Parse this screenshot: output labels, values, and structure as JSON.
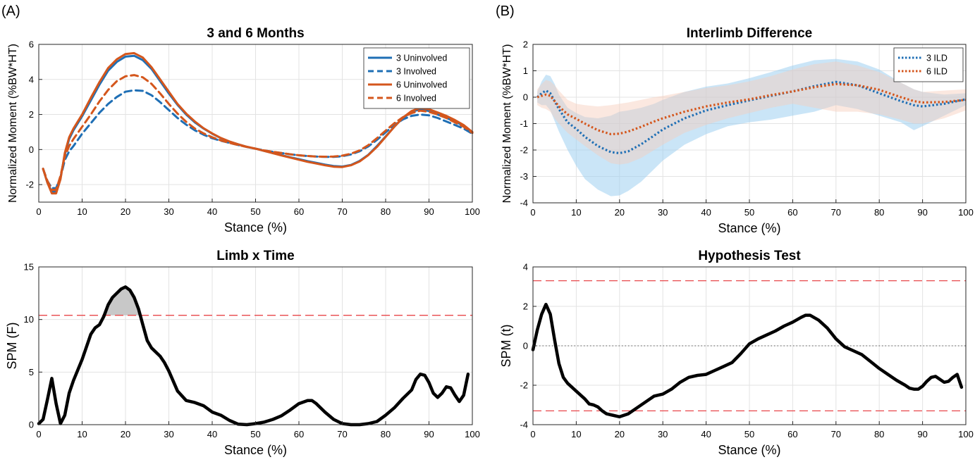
{
  "panel_labels": [
    "(A)",
    "(B)"
  ],
  "colors": {
    "blue": "#1f6fb5",
    "orange": "#d4561c",
    "black": "#000000",
    "threshold": "#e8474a",
    "shade_blue": "#9fd0f0",
    "shade_orange": "#f6cdbb",
    "grid": "#e3e3e3",
    "cluster_fill": "#c8c8c8"
  },
  "chart_data": [
    {
      "id": "A_top",
      "type": "line",
      "title": "3 and 6 Months",
      "xlabel": "Stance (%)",
      "ylabel": "Normalized Moment (%BW*HT)",
      "xlim": [
        0,
        100
      ],
      "ylim": [
        -3,
        6
      ],
      "xticks": [
        0,
        10,
        20,
        30,
        40,
        50,
        60,
        70,
        80,
        90,
        100
      ],
      "yticks": [
        -2,
        0,
        2,
        4,
        6
      ],
      "grid": true,
      "legend_position": "top-right",
      "x": [
        1,
        2,
        3,
        4,
        5,
        6,
        7,
        8,
        10,
        12,
        14,
        16,
        18,
        20,
        22,
        24,
        26,
        28,
        30,
        32,
        34,
        36,
        38,
        40,
        42,
        44,
        46,
        48,
        50,
        52,
        54,
        56,
        58,
        60,
        62,
        64,
        66,
        68,
        70,
        72,
        74,
        76,
        78,
        80,
        82,
        84,
        86,
        88,
        90,
        92,
        94,
        96,
        98,
        100
      ],
      "series": [
        {
          "name": "3 Uninvolved",
          "color": "blue",
          "dash": "solid",
          "values": [
            -1.1,
            -1.9,
            -2.4,
            -2.4,
            -1.6,
            -0.3,
            0.6,
            1.1,
            1.9,
            2.8,
            3.7,
            4.5,
            5.0,
            5.3,
            5.35,
            5.1,
            4.6,
            3.9,
            3.2,
            2.55,
            2.0,
            1.55,
            1.2,
            0.9,
            0.65,
            0.45,
            0.3,
            0.15,
            0.05,
            -0.08,
            -0.2,
            -0.32,
            -0.44,
            -0.55,
            -0.66,
            -0.76,
            -0.86,
            -0.94,
            -0.97,
            -0.88,
            -0.65,
            -0.3,
            0.2,
            0.75,
            1.3,
            1.8,
            2.15,
            2.3,
            2.2,
            2.0,
            1.8,
            1.6,
            1.35,
            0.95
          ]
        },
        {
          "name": "3 Involved",
          "color": "blue",
          "dash": "dashed",
          "values": [
            -1.1,
            -1.8,
            -2.2,
            -2.2,
            -1.6,
            -0.6,
            -0.1,
            0.2,
            0.9,
            1.5,
            2.1,
            2.6,
            3.0,
            3.3,
            3.38,
            3.35,
            3.1,
            2.7,
            2.25,
            1.8,
            1.42,
            1.1,
            0.85,
            0.65,
            0.5,
            0.38,
            0.26,
            0.15,
            0.05,
            -0.05,
            -0.13,
            -0.2,
            -0.27,
            -0.33,
            -0.37,
            -0.4,
            -0.42,
            -0.42,
            -0.38,
            -0.28,
            -0.1,
            0.18,
            0.55,
            0.98,
            1.4,
            1.72,
            1.92,
            2.0,
            1.95,
            1.8,
            1.6,
            1.4,
            1.2,
            0.9
          ]
        },
        {
          "name": "6 Uninvolved",
          "color": "orange",
          "dash": "solid",
          "values": [
            -1.1,
            -1.9,
            -2.5,
            -2.5,
            -1.7,
            -0.2,
            0.7,
            1.2,
            2.0,
            2.95,
            3.85,
            4.65,
            5.15,
            5.45,
            5.5,
            5.25,
            4.7,
            4.0,
            3.3,
            2.6,
            2.05,
            1.6,
            1.22,
            0.92,
            0.66,
            0.46,
            0.3,
            0.16,
            0.05,
            -0.08,
            -0.21,
            -0.34,
            -0.46,
            -0.58,
            -0.7,
            -0.8,
            -0.9,
            -0.98,
            -1.0,
            -0.9,
            -0.68,
            -0.32,
            0.15,
            0.72,
            1.3,
            1.82,
            2.2,
            2.38,
            2.3,
            2.12,
            1.92,
            1.68,
            1.4,
            1.0
          ]
        },
        {
          "name": "6 Involved",
          "color": "orange",
          "dash": "dashed",
          "values": [
            -1.1,
            -1.8,
            -2.3,
            -2.3,
            -1.5,
            -0.4,
            0.2,
            0.6,
            1.3,
            2.0,
            2.75,
            3.4,
            3.9,
            4.18,
            4.25,
            4.12,
            3.75,
            3.2,
            2.6,
            2.05,
            1.58,
            1.2,
            0.92,
            0.7,
            0.52,
            0.38,
            0.26,
            0.15,
            0.05,
            -0.05,
            -0.13,
            -0.2,
            -0.27,
            -0.33,
            -0.37,
            -0.4,
            -0.41,
            -0.4,
            -0.35,
            -0.24,
            -0.05,
            0.25,
            0.65,
            1.08,
            1.5,
            1.85,
            2.08,
            2.22,
            2.15,
            2.0,
            1.8,
            1.55,
            1.3,
            0.95
          ]
        }
      ]
    },
    {
      "id": "B_top",
      "type": "line",
      "title": "Interlimb Difference",
      "xlabel": "Stance (%)",
      "ylabel": "Normalized Moment (%BW*HT)",
      "xlim": [
        0,
        100
      ],
      "ylim": [
        -4,
        2
      ],
      "xticks": [
        0,
        10,
        20,
        30,
        40,
        50,
        60,
        70,
        80,
        90,
        100
      ],
      "yticks": [
        -4,
        -3,
        -2,
        -1,
        0,
        1,
        2
      ],
      "grid": true,
      "legend_position": "top-right",
      "x": [
        1,
        2,
        3,
        4,
        5,
        6,
        8,
        10,
        12,
        15,
        18,
        20,
        22,
        25,
        28,
        30,
        35,
        40,
        45,
        50,
        55,
        60,
        65,
        70,
        75,
        80,
        85,
        88,
        90,
        95,
        100
      ],
      "series": [
        {
          "name": "3 ILD",
          "color": "blue",
          "dash": "dotted",
          "values": [
            0.0,
            0.15,
            0.25,
            0.15,
            -0.15,
            -0.45,
            -0.95,
            -1.2,
            -1.5,
            -1.85,
            -2.08,
            -2.12,
            -2.05,
            -1.78,
            -1.45,
            -1.22,
            -0.8,
            -0.5,
            -0.3,
            -0.12,
            0.05,
            0.22,
            0.42,
            0.58,
            0.45,
            0.15,
            -0.15,
            -0.3,
            -0.35,
            -0.25,
            -0.08
          ],
          "upper": [
            0.2,
            0.6,
            0.85,
            0.8,
            0.5,
            0.1,
            -0.4,
            -0.6,
            -0.75,
            -0.8,
            -0.7,
            -0.55,
            -0.5,
            -0.4,
            -0.25,
            -0.1,
            0.2,
            0.4,
            0.52,
            0.72,
            0.95,
            1.2,
            1.4,
            1.45,
            1.35,
            1.05,
            0.55,
            0.3,
            0.2,
            0.1,
            0.15
          ],
          "lower": [
            -0.2,
            -0.3,
            -0.3,
            -0.5,
            -0.9,
            -1.3,
            -2.0,
            -2.6,
            -3.1,
            -3.5,
            -3.75,
            -3.72,
            -3.55,
            -3.2,
            -2.72,
            -2.4,
            -1.8,
            -1.4,
            -1.1,
            -0.95,
            -0.85,
            -0.7,
            -0.55,
            -0.3,
            -0.45,
            -0.7,
            -0.95,
            -1.25,
            -1.1,
            -0.7,
            -0.3
          ]
        },
        {
          "name": "6 ILD",
          "color": "orange",
          "dash": "dotted",
          "values": [
            0.0,
            0.05,
            0.1,
            0.05,
            -0.15,
            -0.35,
            -0.65,
            -0.82,
            -1.0,
            -1.25,
            -1.4,
            -1.38,
            -1.3,
            -1.12,
            -0.92,
            -0.8,
            -0.55,
            -0.35,
            -0.2,
            -0.08,
            0.08,
            0.22,
            0.38,
            0.5,
            0.45,
            0.28,
            0.0,
            -0.15,
            -0.2,
            -0.18,
            -0.1
          ],
          "upper": [
            0.3,
            0.5,
            0.65,
            0.6,
            0.45,
            0.25,
            -0.1,
            -0.25,
            -0.3,
            -0.35,
            -0.3,
            -0.25,
            -0.2,
            -0.1,
            0.0,
            0.05,
            0.2,
            0.35,
            0.45,
            0.6,
            0.8,
            1.05,
            1.25,
            1.35,
            1.2,
            0.95,
            0.55,
            0.3,
            0.2,
            0.25,
            0.3
          ],
          "lower": [
            -0.3,
            -0.4,
            -0.45,
            -0.55,
            -0.8,
            -1.0,
            -1.35,
            -1.6,
            -1.85,
            -2.2,
            -2.5,
            -2.55,
            -2.5,
            -2.3,
            -2.0,
            -1.8,
            -1.35,
            -1.05,
            -0.8,
            -0.6,
            -0.4,
            -0.25,
            -0.4,
            -0.55,
            -0.55,
            -0.65,
            -0.85,
            -1.0,
            -1.0,
            -0.8,
            -0.5
          ]
        }
      ]
    },
    {
      "id": "A_bottom",
      "type": "line",
      "title": "Limb x Time",
      "xlabel": "Stance (%)",
      "ylabel": "SPM (F)",
      "xlim": [
        0,
        100
      ],
      "ylim": [
        0,
        15
      ],
      "xticks": [
        0,
        10,
        20,
        30,
        40,
        50,
        60,
        70,
        80,
        90,
        100
      ],
      "yticks": [
        0,
        5,
        10,
        15
      ],
      "grid": true,
      "threshold": 10.4,
      "threshold_style": "dashed",
      "shade_above_threshold": true,
      "x": [
        0,
        1,
        2,
        3,
        4,
        5,
        6,
        7,
        8,
        10,
        12,
        13,
        14,
        15,
        16,
        17,
        18,
        19,
        20,
        21,
        22,
        23,
        24,
        25,
        26,
        27,
        28,
        29,
        30,
        32,
        34,
        36,
        38,
        40,
        42,
        44,
        46,
        48,
        50,
        52,
        54,
        56,
        58,
        60,
        62,
        63,
        64,
        66,
        68,
        70,
        72,
        74,
        76,
        78,
        80,
        82,
        84,
        86,
        87,
        88,
        89,
        90,
        91,
        92,
        93,
        94,
        95,
        96,
        97,
        98,
        99
      ],
      "series": [
        {
          "name": "",
          "color": "black",
          "dash": "solid",
          "values": [
            0.1,
            0.5,
            2.4,
            4.4,
            2.0,
            0.1,
            0.9,
            3.0,
            4.2,
            6.2,
            8.6,
            9.2,
            9.5,
            10.3,
            11.4,
            12.1,
            12.5,
            12.9,
            13.1,
            12.8,
            12.1,
            11.0,
            9.5,
            8.0,
            7.3,
            6.9,
            6.5,
            5.9,
            5.1,
            3.2,
            2.3,
            2.1,
            1.8,
            1.2,
            0.9,
            0.4,
            0.05,
            0.0,
            0.1,
            0.25,
            0.5,
            0.85,
            1.4,
            2.0,
            2.3,
            2.3,
            2.0,
            1.2,
            0.5,
            0.1,
            0.0,
            0.0,
            0.1,
            0.3,
            0.9,
            1.6,
            2.5,
            3.3,
            4.3,
            4.8,
            4.7,
            4.0,
            3.0,
            2.6,
            3.0,
            3.6,
            3.5,
            2.8,
            2.2,
            2.8,
            4.8
          ]
        }
      ]
    },
    {
      "id": "B_bottom",
      "type": "line",
      "title": "Hypothesis Test",
      "xlabel": "Stance (%)",
      "ylabel": "SPM (t)",
      "xlim": [
        0,
        100
      ],
      "ylim": [
        -4,
        4
      ],
      "xticks": [
        0,
        10,
        20,
        30,
        40,
        50,
        60,
        70,
        80,
        90,
        100
      ],
      "yticks": [
        -4,
        -2,
        0,
        2,
        4
      ],
      "grid": true,
      "thresholds": [
        3.3,
        -3.3
      ],
      "zero_line": true,
      "x": [
        0,
        1,
        2,
        3,
        4,
        5,
        6,
        7,
        8,
        10,
        12,
        13,
        14,
        15,
        16,
        17,
        18,
        20,
        22,
        24,
        26,
        28,
        30,
        32,
        34,
        36,
        38,
        40,
        42,
        44,
        46,
        48,
        50,
        52,
        54,
        56,
        58,
        60,
        62,
        63,
        64,
        66,
        68,
        70,
        72,
        74,
        76,
        78,
        80,
        82,
        84,
        86,
        87,
        88,
        89,
        90,
        91,
        92,
        93,
        94,
        95,
        96,
        97,
        98,
        99
      ],
      "series": [
        {
          "name": "",
          "color": "black",
          "dash": "solid",
          "values": [
            -0.2,
            0.8,
            1.6,
            2.1,
            1.6,
            0.3,
            -0.9,
            -1.6,
            -1.9,
            -2.3,
            -2.7,
            -2.95,
            -3.0,
            -3.1,
            -3.3,
            -3.45,
            -3.5,
            -3.6,
            -3.45,
            -3.15,
            -2.85,
            -2.55,
            -2.45,
            -2.2,
            -1.85,
            -1.6,
            -1.5,
            -1.45,
            -1.25,
            -1.05,
            -0.85,
            -0.4,
            0.1,
            0.35,
            0.55,
            0.75,
            1.0,
            1.2,
            1.45,
            1.55,
            1.55,
            1.3,
            0.9,
            0.35,
            -0.05,
            -0.25,
            -0.45,
            -0.8,
            -1.15,
            -1.45,
            -1.75,
            -2.0,
            -2.15,
            -2.2,
            -2.2,
            -2.05,
            -1.8,
            -1.6,
            -1.55,
            -1.7,
            -1.85,
            -1.8,
            -1.6,
            -1.45,
            -2.1
          ]
        }
      ]
    }
  ]
}
